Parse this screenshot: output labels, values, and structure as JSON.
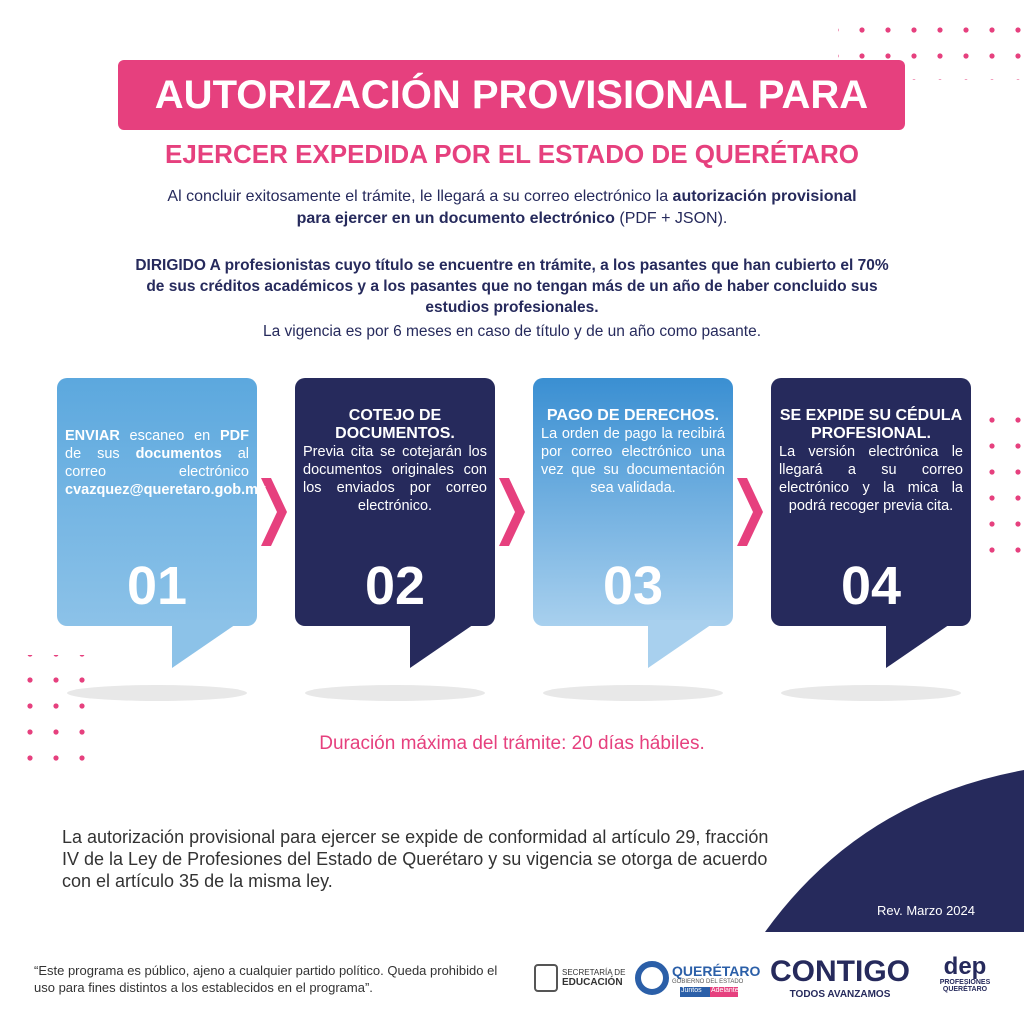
{
  "header": {
    "title_line1": "AUTORIZACIÓN PROVISIONAL PARA",
    "title_line2": "EJERCER EXPEDIDA POR EL ESTADO DE QUERÉTARO"
  },
  "intro": [
    {
      "text": "Al concluir exitosamente el trámite, le llegará a su correo electrónico la ",
      "bold": false
    },
    {
      "text": "autorización provisional para ejercer en un documento electrónico",
      "bold": true
    },
    {
      "text": " (PDF + JSON).",
      "bold": false
    }
  ],
  "audience": {
    "text": "DIRIGIDO A profesionistas cuyo título se encuentre en trámite, a los pasantes que han cubierto el 70% de sus créditos académicos y a los pasantes que no tengan más de un año de haber concluido sus estudios profesionales.",
    "validity": "La vigencia es por 6 meses en caso de título y de un año como pasante."
  },
  "steps": [
    {
      "number": "01",
      "body": [
        {
          "text": "ENVIAR",
          "bold": true
        },
        {
          "text": " escaneo en ",
          "bold": false
        },
        {
          "text": "PDF",
          "bold": true
        },
        {
          "text": " de sus ",
          "bold": false
        },
        {
          "text": "documentos",
          "bold": true
        },
        {
          "text": " al correo electrónico ",
          "bold": false
        },
        {
          "text": "cvazquez@queretaro.gob.mx",
          "bold": true
        }
      ]
    },
    {
      "number": "02",
      "title": "COTEJO DE DOCUMENTOS.",
      "body": [
        {
          "text": "Previa cita se cotejarán los documentos originales con los enviados por correo electrónico.",
          "bold": false
        }
      ]
    },
    {
      "number": "03",
      "title": "PAGO DE DERECHOS.",
      "body": [
        {
          "text": "La orden de pago la recibirá por correo electrónico una vez que su documentación sea validada.",
          "bold": false
        }
      ]
    },
    {
      "number": "04",
      "title": "SE EXPIDE SU CÉDULA PROFESIONAL.",
      "body": [
        {
          "text": "La versión electrónica le llegará a su correo electrónico y la mica la podrá recoger previa cita.",
          "bold": false
        }
      ]
    }
  ],
  "duration": "Duración máxima del trámite: 20 días hábiles.",
  "legal": "La autorización provisional para ejercer se expide de conformidad al artículo 29, fracción IV de la Ley de Profesiones del Estado de Querétaro y su vigencia se otorga de acuerdo con el artículo 35 de la misma ley.",
  "revision": "Rev. Marzo 2024",
  "disclaimer": "“Este programa es público, ajeno a cualquier partido político. Queda prohibido el uso para fines distintos a los establecidos en el programa”.",
  "logos": {
    "sep_line1": "SECRETARÍA DE",
    "sep_line2": "EDUCACIÓN",
    "qro_name": "QUERÉTARO",
    "qro_sub": "GOBIERNO DEL ESTADO",
    "qro_tag1": "Juntos",
    "qro_tag2": "Adelante",
    "contigo": "CONTIGO",
    "contigo_sub": "TODOS AVANZAMOS",
    "dep": "dep",
    "dep_sub": "PROFESIONES QUERÉTARO"
  }
}
